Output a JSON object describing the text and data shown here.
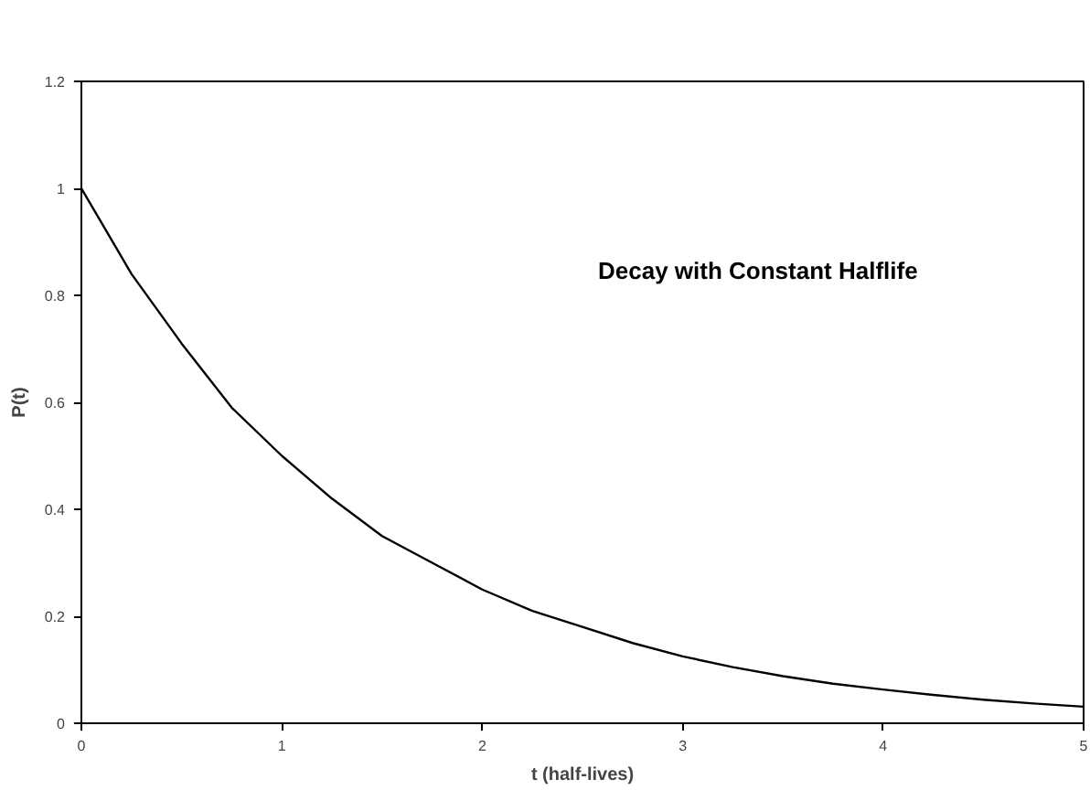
{
  "chart_data": {
    "type": "line",
    "title": "Decay with Constant Halflife",
    "xlabel": "t (half-lives)",
    "ylabel": "P(t)",
    "x": [
      0,
      0.25,
      0.5,
      0.75,
      1,
      1.25,
      1.5,
      1.75,
      2,
      2.25,
      2.5,
      2.75,
      3,
      3.25,
      3.5,
      3.75,
      4,
      4.25,
      4.5,
      4.75,
      5
    ],
    "series": [
      {
        "color": "#000000",
        "values": [
          1,
          0.84,
          0.71,
          0.59,
          0.5,
          0.42,
          0.35,
          0.3,
          0.25,
          0.21,
          0.18,
          0.15,
          0.125,
          0.105,
          0.088,
          0.074,
          0.063,
          0.053,
          0.044,
          0.037,
          0.031
        ]
      }
    ],
    "xlim": [
      0,
      5
    ],
    "xticks": [
      0,
      1,
      2,
      3,
      4,
      5
    ],
    "ylim": [
      0,
      1.2
    ],
    "yticks": [
      0,
      0.2,
      0.4,
      0.6,
      0.8,
      1,
      1.2
    ],
    "grid": false,
    "marker": "none",
    "line_style": "solid"
  }
}
